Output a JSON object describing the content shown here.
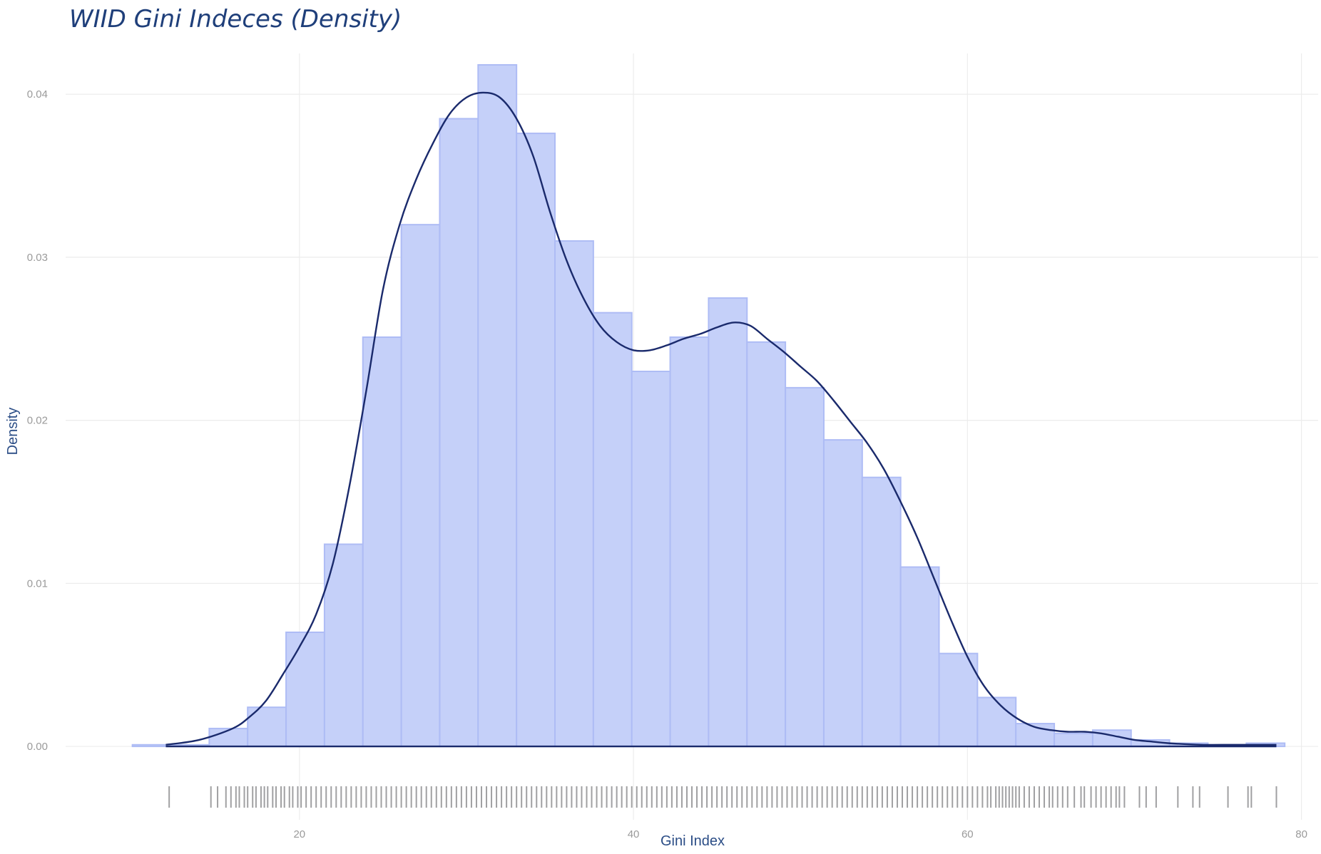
{
  "chart_data": {
    "type": "bar",
    "title": "WIID Gini Indeces (Density)",
    "xlabel": "Gini Index",
    "ylabel": "Density",
    "xlim": [
      6,
      81
    ],
    "ylim": [
      -0.0045,
      0.0425
    ],
    "xticks": [
      20,
      40,
      60,
      80
    ],
    "yticks": [
      0.0,
      0.01,
      0.02,
      0.03,
      0.04
    ],
    "xtick_labels": [
      "20",
      "40",
      "60",
      "80"
    ],
    "ytick_labels": [
      "0.00",
      "0.01",
      "0.02",
      "0.03",
      "0.04"
    ],
    "grid": true,
    "colors": {
      "bars": "#c5d0f9",
      "bar_edge": "#aebcf5",
      "kde": "#1a2a6c",
      "rug": "#a0a0a2",
      "title": "#1f3f7a"
    },
    "histogram": {
      "bin_edges": [
        10.0,
        12.3,
        14.6,
        16.9,
        19.2,
        21.5,
        23.8,
        26.1,
        28.4,
        30.7,
        33.0,
        35.3,
        37.6,
        39.9,
        42.2,
        44.5,
        46.8,
        49.1,
        51.4,
        53.7,
        56.0,
        58.3,
        60.6,
        62.9,
        65.2,
        67.5,
        69.8,
        72.1,
        74.4,
        76.7,
        79.0
      ],
      "densities": [
        0.0001,
        0.0001,
        0.0011,
        0.0024,
        0.007,
        0.0124,
        0.0251,
        0.032,
        0.0385,
        0.0418,
        0.0376,
        0.031,
        0.0266,
        0.023,
        0.0251,
        0.0275,
        0.0248,
        0.022,
        0.0188,
        0.0165,
        0.011,
        0.0057,
        0.003,
        0.0014,
        0.0008,
        0.001,
        0.0004,
        0.0002,
        0.0001,
        0.0002
      ]
    },
    "kde": {
      "x": [
        12,
        14,
        16,
        17,
        18,
        19,
        20,
        21,
        22,
        23,
        24,
        25,
        26,
        27,
        28,
        29,
        30,
        31,
        32,
        33,
        34,
        35,
        36,
        37,
        38,
        39,
        40,
        41,
        42,
        43,
        44,
        45,
        46,
        47,
        48,
        49,
        50,
        51,
        52,
        53,
        54,
        55,
        56,
        57,
        58,
        59,
        60,
        61,
        62,
        63,
        64,
        65,
        66,
        67,
        68,
        69,
        70,
        71,
        72,
        74,
        76,
        78.5
      ],
      "y": [
        0.0001,
        0.0004,
        0.0011,
        0.0018,
        0.0028,
        0.0044,
        0.0061,
        0.0081,
        0.0112,
        0.016,
        0.0218,
        0.028,
        0.032,
        0.0348,
        0.037,
        0.0388,
        0.0398,
        0.0401,
        0.0398,
        0.0385,
        0.0362,
        0.0328,
        0.0298,
        0.0275,
        0.0258,
        0.0248,
        0.0243,
        0.0243,
        0.0246,
        0.025,
        0.0253,
        0.0257,
        0.026,
        0.0258,
        0.025,
        0.0242,
        0.0233,
        0.0224,
        0.0212,
        0.0199,
        0.0186,
        0.017,
        0.015,
        0.0128,
        0.0103,
        0.0078,
        0.0055,
        0.0037,
        0.0025,
        0.0017,
        0.0012,
        0.001,
        0.0009,
        0.0009,
        0.0008,
        0.0006,
        0.0004,
        0.0003,
        0.0002,
        0.0001,
        0.0001,
        0.0001
      ]
    },
    "rug": {
      "x": [
        12.2,
        14.7,
        15.1,
        15.6,
        15.9,
        16.2,
        16.4,
        16.7,
        16.9,
        17.2,
        17.4,
        17.7,
        17.9,
        18.1,
        18.4,
        18.6,
        18.9,
        19.1,
        19.4,
        19.6,
        19.9,
        20.1,
        20.4,
        20.7,
        21.0,
        21.3,
        21.6,
        21.9,
        22.2,
        22.5,
        22.8,
        23.1,
        23.4,
        23.7,
        24.0,
        24.3,
        24.6,
        24.9,
        25.2,
        25.5,
        25.8,
        26.1,
        26.4,
        26.7,
        27.0,
        27.3,
        27.6,
        27.9,
        28.2,
        28.5,
        28.8,
        29.1,
        29.4,
        29.7,
        30.0,
        30.3,
        30.6,
        30.9,
        31.2,
        31.5,
        31.8,
        32.1,
        32.4,
        32.7,
        33.0,
        33.3,
        33.6,
        33.9,
        34.2,
        34.5,
        34.8,
        35.1,
        35.4,
        35.7,
        36.0,
        36.3,
        36.6,
        36.9,
        37.2,
        37.5,
        37.8,
        38.1,
        38.4,
        38.7,
        39.0,
        39.3,
        39.6,
        39.9,
        40.2,
        40.5,
        40.8,
        41.1,
        41.4,
        41.7,
        42.0,
        42.3,
        42.6,
        42.9,
        43.2,
        43.5,
        43.8,
        44.1,
        44.4,
        44.7,
        45.0,
        45.3,
        45.6,
        45.9,
        46.2,
        46.5,
        46.8,
        47.1,
        47.4,
        47.7,
        48.0,
        48.3,
        48.6,
        48.9,
        49.2,
        49.5,
        49.8,
        50.1,
        50.4,
        50.7,
        51.0,
        51.3,
        51.6,
        51.9,
        52.2,
        52.5,
        52.8,
        53.1,
        53.4,
        53.7,
        54.0,
        54.3,
        54.6,
        54.9,
        55.2,
        55.5,
        55.8,
        56.1,
        56.4,
        56.7,
        57.0,
        57.3,
        57.6,
        57.9,
        58.2,
        58.5,
        58.8,
        59.1,
        59.4,
        59.7,
        60.0,
        60.3,
        60.6,
        60.9,
        61.2,
        61.4,
        61.7,
        61.9,
        62.1,
        62.3,
        62.5,
        62.7,
        62.9,
        63.1,
        63.4,
        63.7,
        64.0,
        64.3,
        64.6,
        64.9,
        65.1,
        65.4,
        65.7,
        66.0,
        66.4,
        66.8,
        67.0,
        67.4,
        67.7,
        68.0,
        68.3,
        68.6,
        68.9,
        69.1,
        69.4,
        70.3,
        70.7,
        71.3,
        72.6,
        73.5,
        73.9,
        75.6,
        76.8,
        77.0,
        78.5
      ]
    }
  }
}
